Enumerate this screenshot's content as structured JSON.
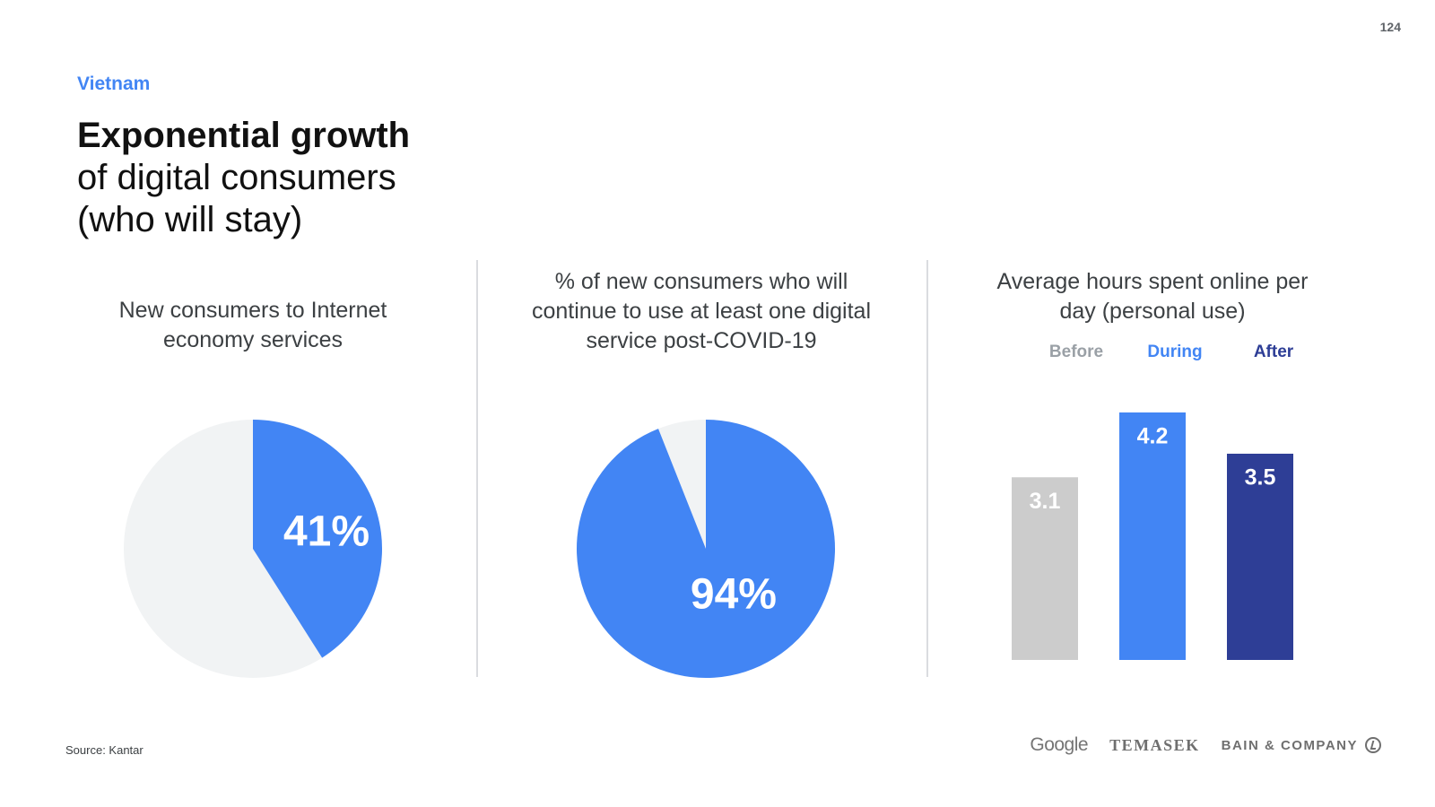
{
  "page": {
    "number": "124",
    "country": "Vietnam",
    "headline_bold": "Exponential growth",
    "headline_line2": "of digital consumers",
    "headline_line3": "(who will stay)",
    "source": "Source: Kantar"
  },
  "colors": {
    "accent_blue": "#4285f4",
    "pie_rest": "#f1f3f4",
    "before": "#cccccc",
    "during": "#4285f4",
    "after": "#2e3e96"
  },
  "panels": {
    "left_title": "New consumers to Internet economy services",
    "middle_title": "% of new consumers who will continue to use at least one digital service post-COVID-19",
    "right_title": "Average hours spent online per day (personal use)"
  },
  "chart_data": [
    {
      "type": "pie",
      "title": "New consumers to Internet economy services",
      "value_pct": 41,
      "label": "41%"
    },
    {
      "type": "pie",
      "title": "% of new consumers who will continue to use at least one digital service post-COVID-19",
      "value_pct": 94,
      "label": "94%"
    },
    {
      "type": "bar",
      "title": "Average hours spent online per day (personal use)",
      "categories": [
        "Before",
        "During",
        "After"
      ],
      "values": [
        3.1,
        4.2,
        3.5
      ],
      "labels": [
        "3.1",
        "4.2",
        "3.5"
      ],
      "legend": [
        "Before",
        "During",
        "After"
      ],
      "legend_placement": "top",
      "ylim": [
        0,
        4.2
      ]
    }
  ],
  "logos": {
    "google": "Google",
    "temasek": "TEMASEK",
    "bain": "BAIN & COMPANY"
  }
}
